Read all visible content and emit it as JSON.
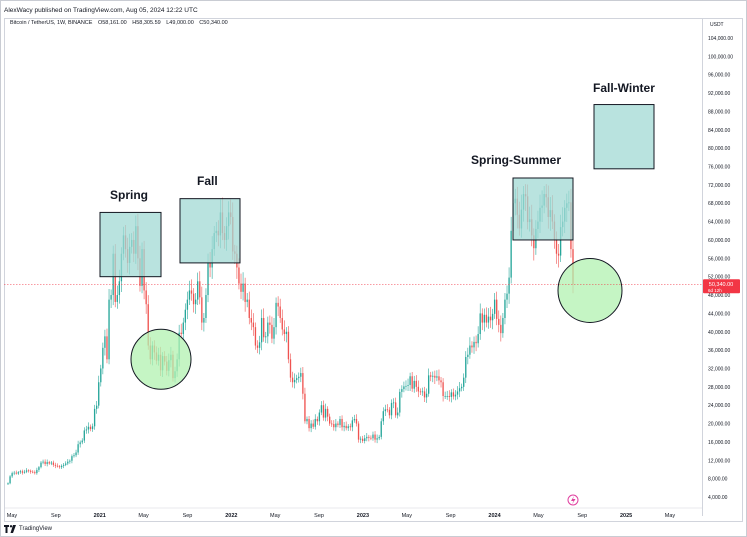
{
  "published": "AlexWacy published on TradingView.com, Aug 05, 2024 12:22 UTC",
  "symbol": {
    "name": "Bitcoin / TetherUS, 1W, BINANCE",
    "open": "O58,161.00",
    "high": "H58,305.59",
    "low": "L49,000.00",
    "close": "C50,340.00"
  },
  "currency": "USDT",
  "last_price": {
    "value": "50,340.00",
    "countdown": "6d 12h",
    "color": "#f23645"
  },
  "annotations": {
    "spring": "Spring",
    "fall": "Fall",
    "spring_summer": "Spring-Summer",
    "fall_winter": "Fall-Winter"
  },
  "footer": {
    "brand": "TradingView"
  },
  "colors": {
    "up": "#26a69a",
    "down": "#ef5350",
    "box_fill": "#a2d9d4",
    "circle_fill": "#b2f2b0"
  },
  "chart_data": {
    "type": "candlestick",
    "timeframe": "1W",
    "y_ticks": [
      4000,
      8000,
      12000,
      16000,
      20000,
      24000,
      28000,
      32000,
      36000,
      40000,
      44000,
      48000,
      52000,
      56000,
      60000,
      64000,
      68000,
      72000,
      76000,
      80000,
      84000,
      88000,
      92000,
      96000,
      100000,
      104000
    ],
    "y_tick_labels": [
      "4,000.00",
      "8,000.00",
      "12,000.00",
      "16,000.00",
      "20,000.00",
      "24,000.00",
      "28,000.00",
      "32,000.00",
      "36,000.00",
      "40,000.00",
      "44,000.00",
      "48,000.00",
      "52,000.00",
      "56,000.00",
      "60,000.00",
      "64,000.00",
      "68,000.00",
      "72,000.00",
      "76,000.00",
      "80,000.00",
      "84,000.00",
      "88,000.00",
      "92,000.00",
      "96,000.00",
      "100,000.00",
      "104,000.00"
    ],
    "x_ticks": [
      {
        "label": "May",
        "bold": false
      },
      {
        "label": "Sep",
        "bold": false
      },
      {
        "label": "2021",
        "bold": true
      },
      {
        "label": "May",
        "bold": false
      },
      {
        "label": "Sep",
        "bold": false
      },
      {
        "label": "2022",
        "bold": true
      },
      {
        "label": "May",
        "bold": false
      },
      {
        "label": "Sep",
        "bold": false
      },
      {
        "label": "2023",
        "bold": true
      },
      {
        "label": "May",
        "bold": false
      },
      {
        "label": "Sep",
        "bold": false
      },
      {
        "label": "2024",
        "bold": true
      },
      {
        "label": "May",
        "bold": false
      },
      {
        "label": "Sep",
        "bold": false
      },
      {
        "label": "2025",
        "bold": true
      },
      {
        "label": "May",
        "bold": false
      }
    ],
    "weekly_close": [
      7000,
      8500,
      9200,
      9300,
      9100,
      9400,
      9600,
      9300,
      9500,
      9800,
      9700,
      9500,
      9400,
      9200,
      9900,
      10500,
      11500,
      11700,
      11200,
      11600,
      11300,
      11500,
      11000,
      10800,
      10700,
      10500,
      10800,
      11000,
      11300,
      11700,
      11900,
      12900,
      13100,
      13700,
      15500,
      15900,
      16300,
      18500,
      18700,
      19300,
      18800,
      19400,
      23200,
      23900,
      29000,
      32000,
      36500,
      39000,
      34000,
      47000,
      48000,
      57000,
      46500,
      48000,
      51000,
      57000,
      61000,
      58000,
      55000,
      58500,
      60000,
      57000,
      63000,
      56000,
      50000,
      58000,
      49000,
      46000,
      37000,
      34000,
      37000,
      35500,
      33700,
      35000,
      31600,
      34700,
      33500,
      31500,
      33800,
      35000,
      29900,
      31400,
      34000,
      39800,
      39500,
      42000,
      44800,
      47000,
      49000,
      48300,
      46000,
      47000,
      51000,
      47500,
      42000,
      43000,
      48000,
      55000,
      54000,
      58000,
      61500,
      62000,
      61000,
      66000,
      61500,
      60000,
      63000,
      66000,
      65000,
      57500,
      57000,
      54000,
      50500,
      48700,
      50500,
      46500,
      47000,
      43000,
      42000,
      41000,
      37000,
      36500,
      37700,
      43000,
      38800,
      39000,
      42000,
      41500,
      38500,
      41000,
      46300,
      45500,
      43000,
      40500,
      39500,
      40000,
      34000,
      30000,
      29000,
      29500,
      29900,
      30200,
      31000,
      26500,
      20500,
      21000,
      19000,
      20000,
      19300,
      21000,
      20500,
      22400,
      24000,
      21300,
      23200,
      21500,
      20000,
      19900,
      19200,
      20000,
      19700,
      21000,
      19200,
      19500,
      19000,
      19400,
      19200,
      20700,
      21000,
      20000,
      16500,
      16700,
      16200,
      16800,
      17100,
      16900,
      16800,
      17600,
      16500,
      16800,
      17100,
      20500,
      22700,
      23100,
      23000,
      21800,
      24500,
      24600,
      21800,
      22400,
      26900,
      27500,
      28100,
      28200,
      28400,
      30300,
      27600,
      29300,
      28000,
      27000,
      26900,
      27000,
      25700,
      26500,
      30500,
      30200,
      30400,
      30000,
      30300,
      29400,
      29000,
      26000,
      26000,
      26000,
      25800,
      26800,
      25900,
      26300,
      27000,
      27700,
      28000,
      30000,
      34500,
      35000,
      37000,
      36600,
      37800,
      37500,
      39500,
      44000,
      42000,
      43700,
      42000,
      43300,
      42500,
      43900,
      47000,
      42800,
      41500,
      39700,
      43000,
      47000,
      48300,
      51800,
      62000,
      68000,
      69000,
      65500,
      62500,
      66600,
      70000,
      69500,
      63900,
      64500,
      61000,
      58200,
      62400,
      64000,
      67000,
      67500,
      70000,
      69300,
      65000,
      66500,
      64000,
      60000,
      57000,
      56600,
      62800,
      64000,
      67000,
      68000,
      68200,
      58000,
      50340
    ],
    "shapes": [
      {
        "kind": "box",
        "label": "Spring",
        "low": 52000,
        "high": 66000
      },
      {
        "kind": "box",
        "label": "Fall",
        "low": 55000,
        "high": 69000
      },
      {
        "kind": "box",
        "label": "Spring-Summer",
        "low": 60000,
        "high": 73500
      },
      {
        "kind": "box",
        "label": "Fall-Winter",
        "low": 75500,
        "high": 89500
      },
      {
        "kind": "circle",
        "center": 34000
      },
      {
        "kind": "circle",
        "center": 49000
      }
    ]
  }
}
